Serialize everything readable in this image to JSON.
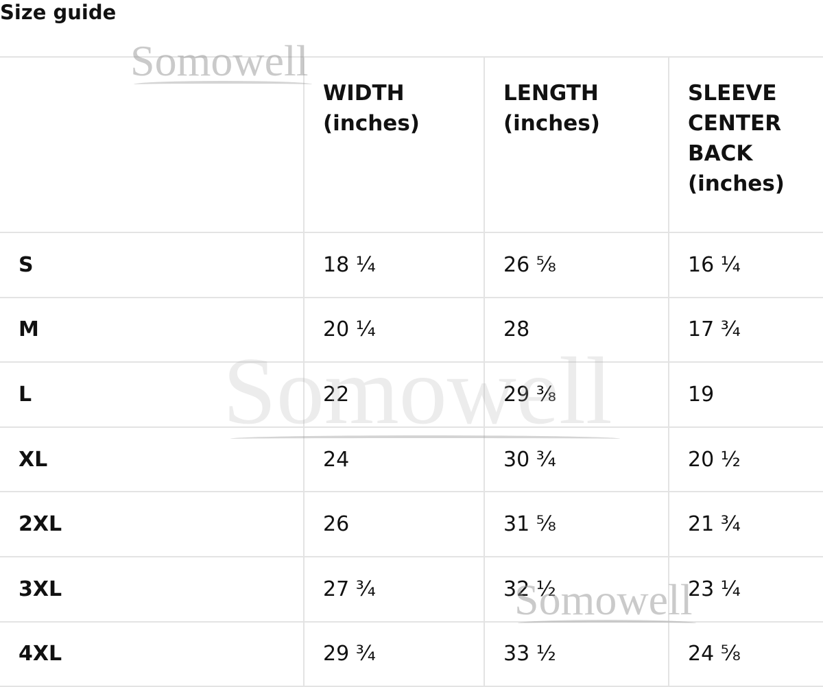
{
  "title": "Size guide",
  "watermark": "Somowell",
  "table": {
    "headers": [
      "",
      "WIDTH (inches)",
      "LENGTH (inches)",
      "SLEEVE CENTER BACK (inches)"
    ],
    "rows": [
      {
        "size": "S",
        "width": "18 ¼",
        "length": "26 ⅝",
        "sleeve": "16 ¼"
      },
      {
        "size": "M",
        "width": "20 ¼",
        "length": "28",
        "sleeve": "17 ¾"
      },
      {
        "size": "L",
        "width": "22",
        "length": "29 ⅜",
        "sleeve": "19"
      },
      {
        "size": "XL",
        "width": "24",
        "length": "30 ¾",
        "sleeve": "20 ½"
      },
      {
        "size": "2XL",
        "width": "26",
        "length": "31 ⅝",
        "sleeve": "21 ¾"
      },
      {
        "size": "3XL",
        "width": "27 ¾",
        "length": "32 ½",
        "sleeve": "23 ¼"
      },
      {
        "size": "4XL",
        "width": "29 ¾",
        "length": "33 ½",
        "sleeve": "24 ⅝"
      }
    ]
  }
}
